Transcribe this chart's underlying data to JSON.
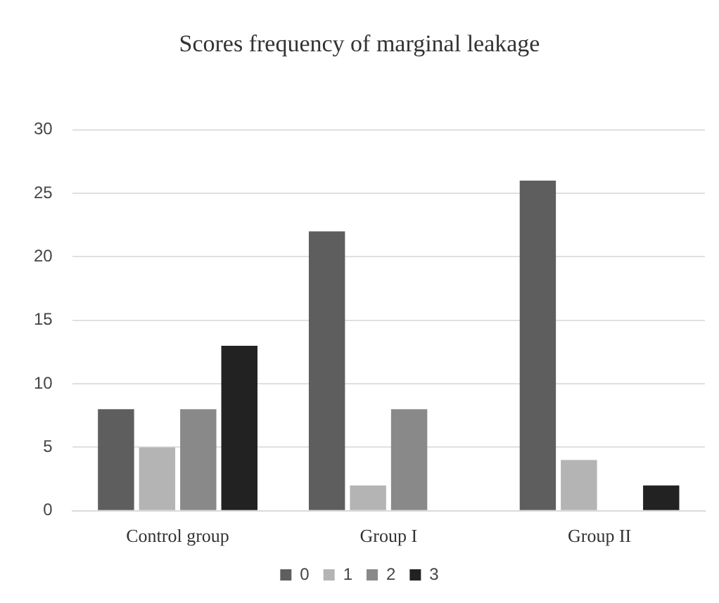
{
  "chart_data": {
    "type": "bar",
    "title": "Scores frequency of marginal leakage",
    "categories": [
      "Control group",
      "Group I",
      "Group II"
    ],
    "series": [
      {
        "name": "0",
        "color": "#5e5e5e",
        "values": [
          8,
          22,
          26
        ]
      },
      {
        "name": "1",
        "color": "#b4b4b4",
        "values": [
          5,
          2,
          4
        ]
      },
      {
        "name": "2",
        "color": "#898989",
        "values": [
          8,
          8,
          0
        ]
      },
      {
        "name": "3",
        "color": "#222222",
        "values": [
          13,
          0,
          2
        ]
      }
    ],
    "ylim": [
      0,
      30
    ],
    "yticks": [
      0,
      5,
      10,
      15,
      20,
      25,
      30
    ],
    "grid": "y",
    "legend": "bottom"
  }
}
